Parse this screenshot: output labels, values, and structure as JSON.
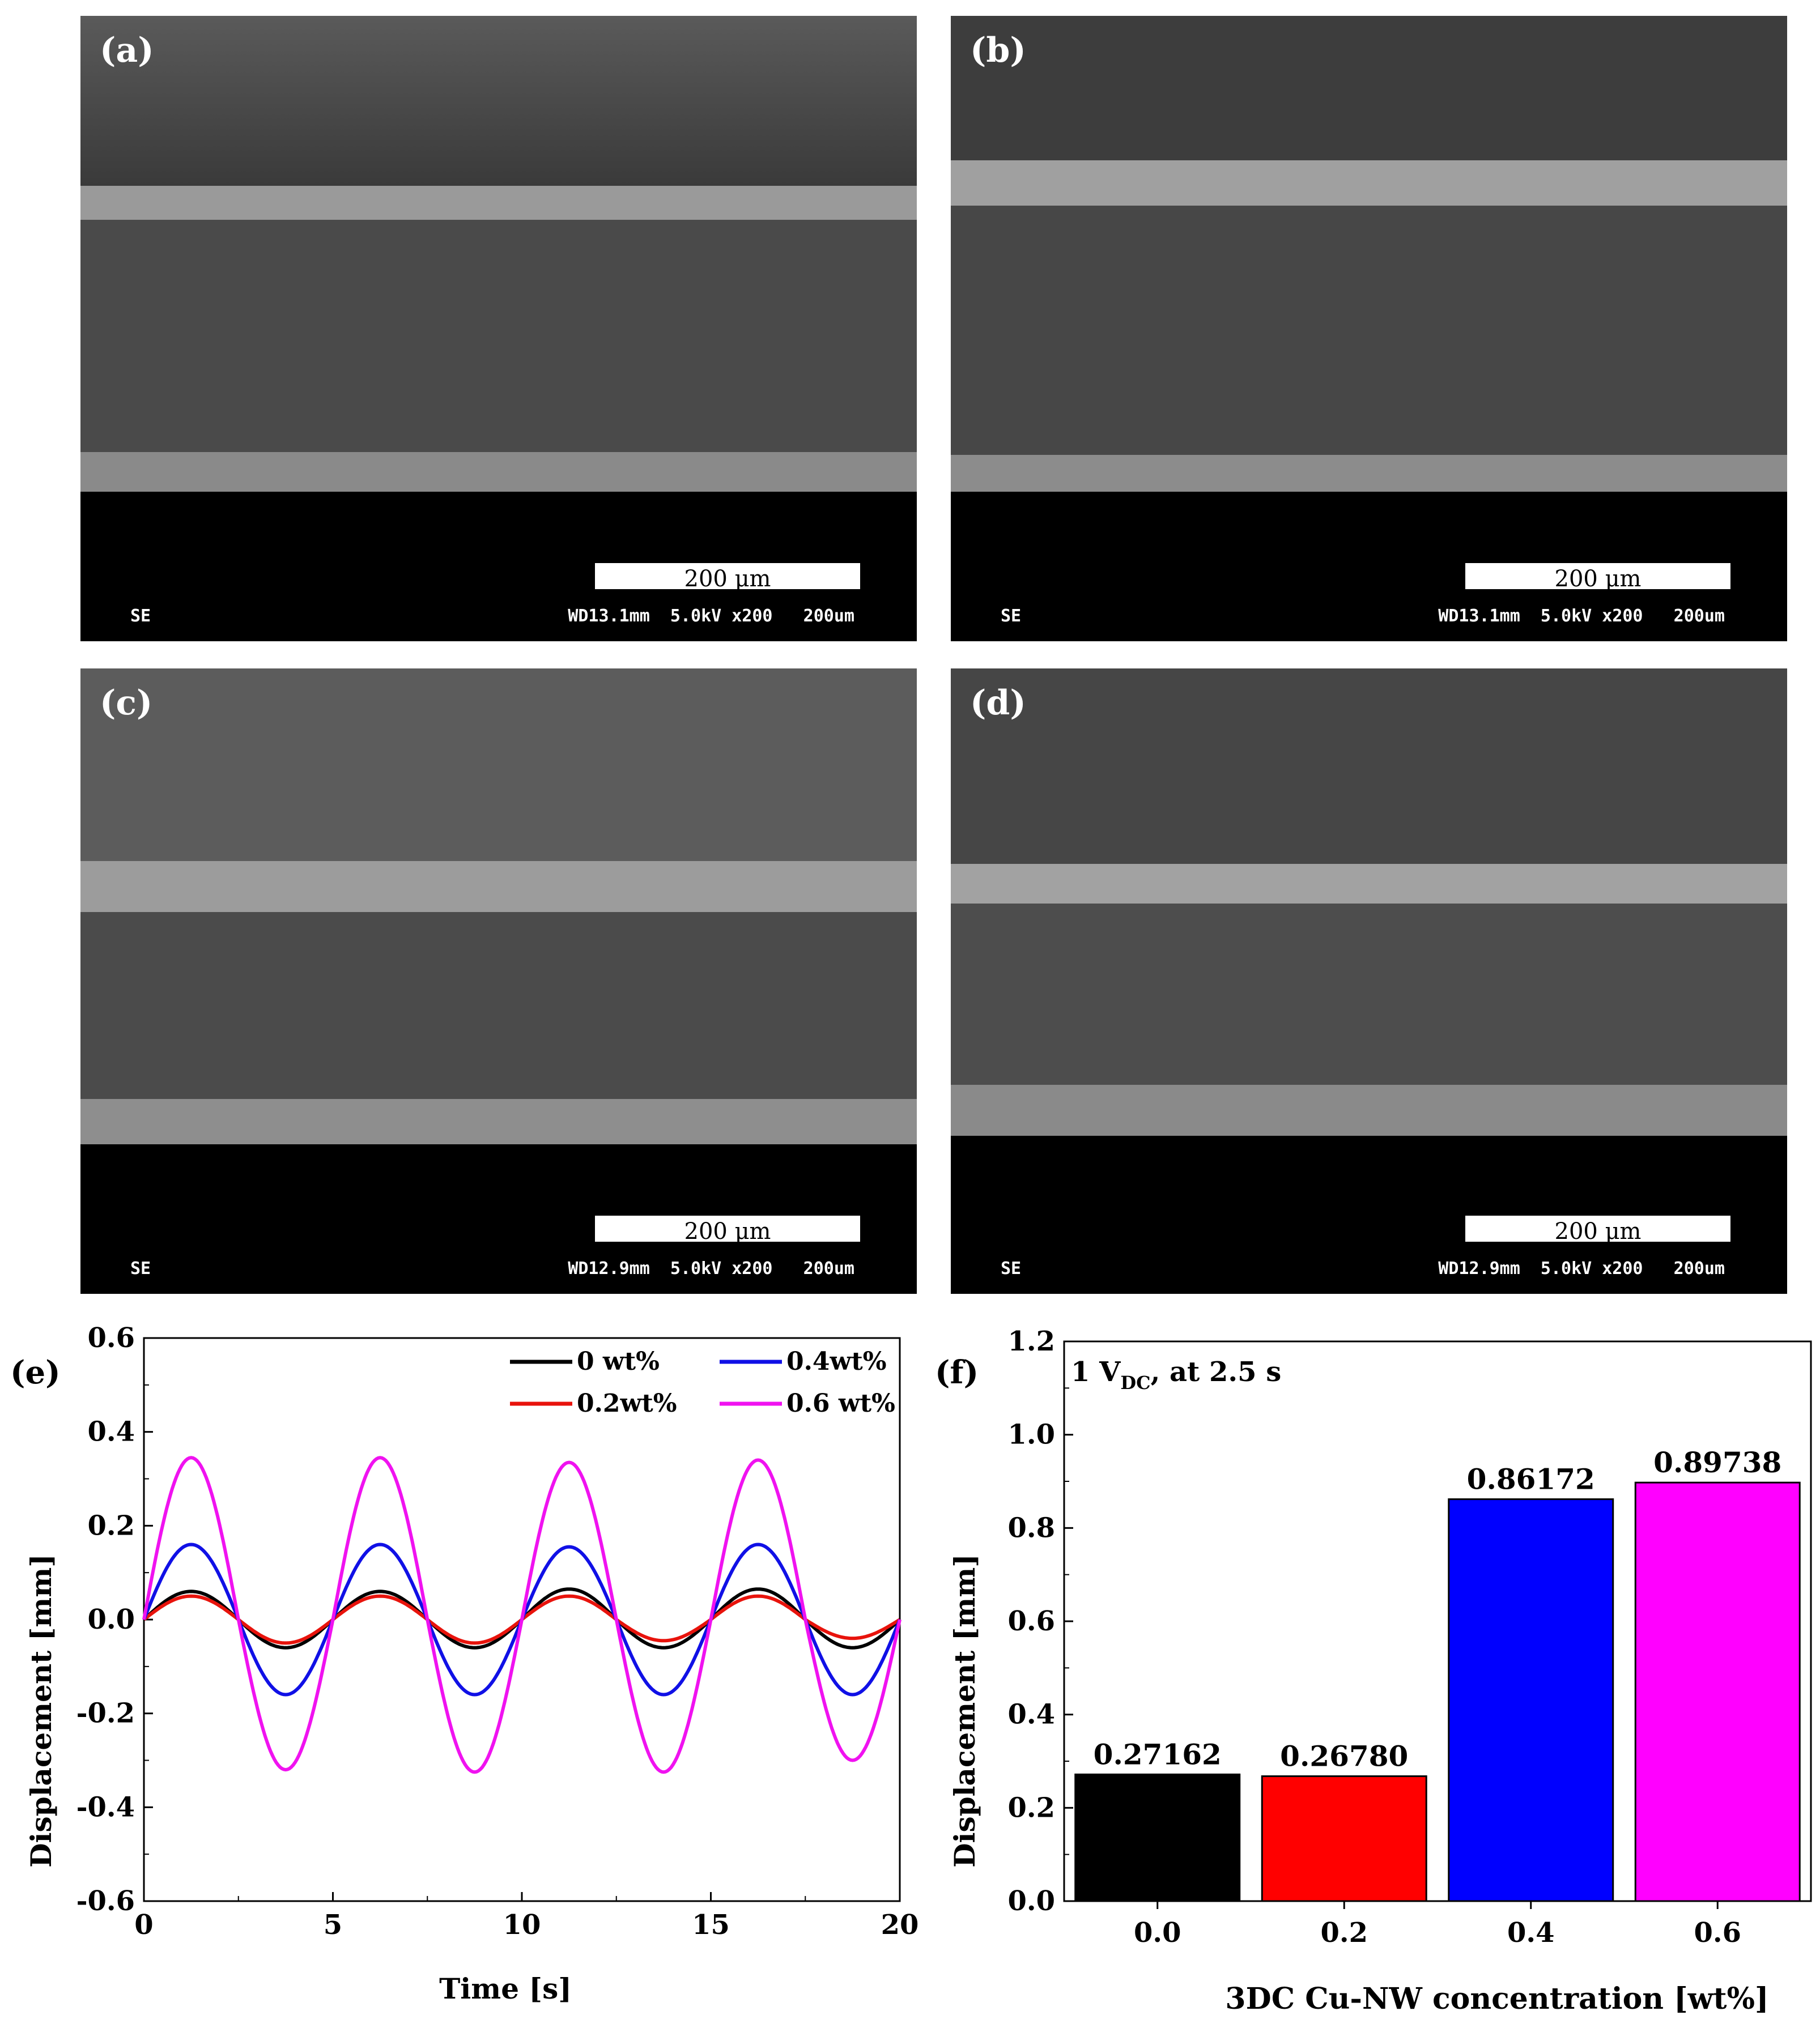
{
  "sem_panels": [
    {
      "label": "(a)",
      "scalebar": "200 µm",
      "detector": "SE",
      "info": "WD13.1mm  5.0kV x200   200um"
    },
    {
      "label": "(b)",
      "scalebar": "200 µm",
      "detector": "SE",
      "info": "WD13.1mm  5.0kV x200   200um"
    },
    {
      "label": "(c)",
      "scalebar": "200 µm",
      "detector": "SE",
      "info": "WD12.9mm  5.0kV x200   200um"
    },
    {
      "label": "(d)",
      "scalebar": "200 µm",
      "detector": "SE",
      "info": "WD12.9mm  5.0kV x200   200um"
    }
  ],
  "chart_data": [
    {
      "type": "line",
      "panel_label": "(e)",
      "xlabel": "Time [s]",
      "ylabel": "Displacement [mm]",
      "xlim": [
        0,
        20
      ],
      "ylim": [
        -0.6,
        0.6
      ],
      "xticks": [
        "0",
        "5",
        "10",
        "15",
        "20"
      ],
      "yticks": [
        "-0.6",
        "-0.4",
        "-0.2",
        "0.0",
        "0.2",
        "0.4",
        "0.6"
      ],
      "legend_position": "top-right",
      "period_s": 5,
      "series": [
        {
          "name": "0 wt%",
          "color": "#000000",
          "amplitude": 0.06,
          "x": [
            0,
            1.25,
            3.75,
            6.25,
            8.75,
            11.25,
            13.75,
            16.25,
            18.75,
            20
          ],
          "y": [
            0,
            0.06,
            -0.06,
            0.06,
            -0.06,
            0.065,
            -0.06,
            0.065,
            -0.06,
            0
          ]
        },
        {
          "name": "0.2wt%",
          "color": "#e8130c",
          "amplitude": 0.05,
          "x": [
            0,
            1.25,
            3.75,
            6.25,
            8.75,
            11.25,
            13.75,
            16.25,
            18.75,
            20
          ],
          "y": [
            0,
            0.05,
            -0.05,
            0.05,
            -0.05,
            0.05,
            -0.045,
            0.05,
            -0.04,
            0
          ]
        },
        {
          "name": "0.4wt%",
          "color": "#1010e6",
          "amplitude": 0.16,
          "x": [
            0,
            1.25,
            3.75,
            6.25,
            8.75,
            11.25,
            13.75,
            16.25,
            18.75,
            20
          ],
          "y": [
            0,
            0.16,
            -0.16,
            0.16,
            -0.16,
            0.155,
            -0.16,
            0.16,
            -0.16,
            0
          ]
        },
        {
          "name": "0.6 wt%",
          "color": "#f012f0",
          "amplitude": 0.34,
          "x": [
            0,
            1.25,
            3.75,
            6.25,
            8.75,
            11.25,
            13.75,
            16.25,
            18.75,
            20
          ],
          "y": [
            0,
            0.345,
            -0.32,
            0.345,
            -0.325,
            0.335,
            -0.325,
            0.34,
            -0.3,
            0
          ]
        }
      ]
    },
    {
      "type": "bar",
      "panel_label": "(f)",
      "annotation": "1 V",
      "annotation_sub": "DC",
      "annotation_tail": ", at 2.5 s",
      "xlabel": "3DC Cu-NW concentration [wt%]",
      "ylabel": "Displacement [mm]",
      "ylim": [
        0,
        1.2
      ],
      "yticks": [
        "0.0",
        "0.2",
        "0.4",
        "0.6",
        "0.8",
        "1.0",
        "1.2"
      ],
      "categories": [
        "0.0",
        "0.2",
        "0.4",
        "0.6"
      ],
      "values": [
        0.27162,
        0.2678,
        0.86172,
        0.89738
      ],
      "value_labels": [
        "0.27162",
        "0.26780",
        "0.86172",
        "0.89738"
      ],
      "colors": [
        "#000000",
        "#ff0000",
        "#0000ff",
        "#ff00ff"
      ]
    }
  ]
}
